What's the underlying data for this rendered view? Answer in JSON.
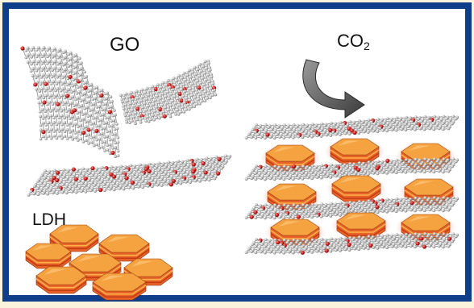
{
  "labels": {
    "go": "GO",
    "co2_main": "CO",
    "co2_sub": "2",
    "ldh": "LDH"
  },
  "colors": {
    "background": "#fbf3dc",
    "border": "#0e3d8a",
    "panel": "#ffffff",
    "carbon_atom": "#b9b9b9",
    "oxygen_atom": "#c41a1a",
    "ldh_face": "#f5a341",
    "ldh_side": "#e8632a",
    "glow": "#ff3b1f",
    "arrow": "#555555"
  },
  "icons": {
    "arrow": "curved-arrow-icon"
  }
}
